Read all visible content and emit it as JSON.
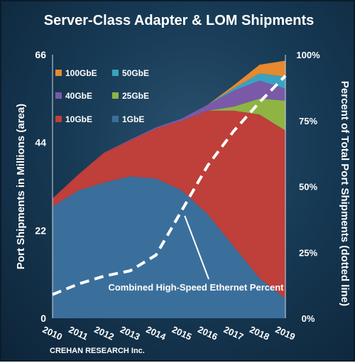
{
  "title": "Server-Class Adapter & LOM Shipments",
  "credit": "CREHAN RESEARCH Inc.",
  "colors": {
    "100GbE": "#e6892f",
    "50GbE": "#3aa2c0",
    "40GbE": "#7a5aa8",
    "25GbE": "#8fb444",
    "10GbE": "#bf3f3a",
    "1GbE": "#3b6f9b",
    "dashed_line": "#ffffff",
    "text": "#ffffff"
  },
  "chart_data": {
    "type": "area",
    "stacked": true,
    "title": "Server-Class Adapter & LOM Shipments",
    "xlabel": "",
    "ylabel": "Port Shipments in Millions (area)",
    "y2label": "Percent of Total Port Shipments (dotted line)",
    "ylim": [
      0,
      66
    ],
    "y2lim": [
      0,
      100
    ],
    "yticks": [
      "0",
      "22",
      "44",
      "66"
    ],
    "y2ticks": [
      "0%",
      "25%",
      "50%",
      "75%",
      "100%"
    ],
    "categories": [
      "2010",
      "2011",
      "2012",
      "2013",
      "2014",
      "2015",
      "2016",
      "2017",
      "2018",
      "2019"
    ],
    "legend": [
      "100GbE",
      "50GbE",
      "40GbE",
      "25GbE",
      "10GbE",
      "1GbE"
    ],
    "series": [
      {
        "name": "1GbE",
        "values": [
          28,
          32,
          34,
          35.5,
          35,
          32,
          26,
          18,
          10,
          5
        ]
      },
      {
        "name": "10GbE",
        "values": [
          2,
          4,
          7.5,
          9,
          12.5,
          17.5,
          26,
          34,
          41,
          42
        ]
      },
      {
        "name": "25GbE",
        "values": [
          0,
          0,
          0,
          0,
          0,
          0,
          0,
          1,
          4,
          7.5
        ]
      },
      {
        "name": "40GbE",
        "values": [
          0,
          0,
          0,
          0.2,
          0.3,
          0.5,
          1.5,
          4,
          4.5,
          3
        ]
      },
      {
        "name": "50GbE",
        "values": [
          0,
          0,
          0,
          0,
          0,
          0,
          0,
          0.6,
          1.8,
          3
        ]
      },
      {
        "name": "100GbE",
        "values": [
          0,
          0,
          0,
          0,
          0,
          0,
          0,
          0.7,
          2.2,
          4
        ]
      }
    ],
    "line": {
      "name": "Combined High-Speed Ethernet Percent",
      "axis": "right",
      "values": [
        9,
        13,
        16,
        18,
        24,
        41,
        58,
        71,
        82,
        92
      ]
    },
    "annotations": [
      {
        "text": "Combined High-Speed Ethernet Percent",
        "target_year": "2015"
      }
    ]
  }
}
